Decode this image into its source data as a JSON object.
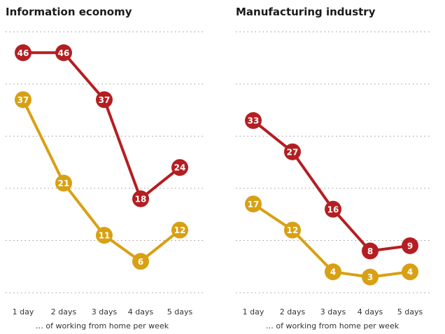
{
  "colors": {
    "series_a": "#b41e22",
    "series_b": "#d8a013",
    "grid": "#9a9a9a"
  },
  "chart_data": [
    {
      "type": "line",
      "title": "Information economy",
      "xlabel": "… of working from home per week",
      "ylabel": "",
      "categories": [
        "1 day",
        "2 days",
        "3 days",
        "4 days",
        "5 days"
      ],
      "ylim": [
        0,
        50
      ],
      "grid": true,
      "series": [
        {
          "values": [
            46,
            46,
            37,
            18,
            24
          ],
          "color": "#b41e22"
        },
        {
          "values": [
            37,
            21,
            11,
            6,
            12
          ],
          "color": "#d8a013"
        }
      ]
    },
    {
      "type": "line",
      "title": "Manufacturing industry",
      "xlabel": "… of working from home per week",
      "ylabel": "",
      "categories": [
        "1 day",
        "2 days",
        "3 days",
        "4 days",
        "5 days"
      ],
      "ylim": [
        0,
        50
      ],
      "grid": true,
      "series": [
        {
          "values": [
            33,
            27,
            16,
            8,
            9
          ],
          "color": "#b41e22"
        },
        {
          "values": [
            17,
            12,
            4,
            3,
            4
          ],
          "color": "#d8a013"
        }
      ]
    }
  ]
}
